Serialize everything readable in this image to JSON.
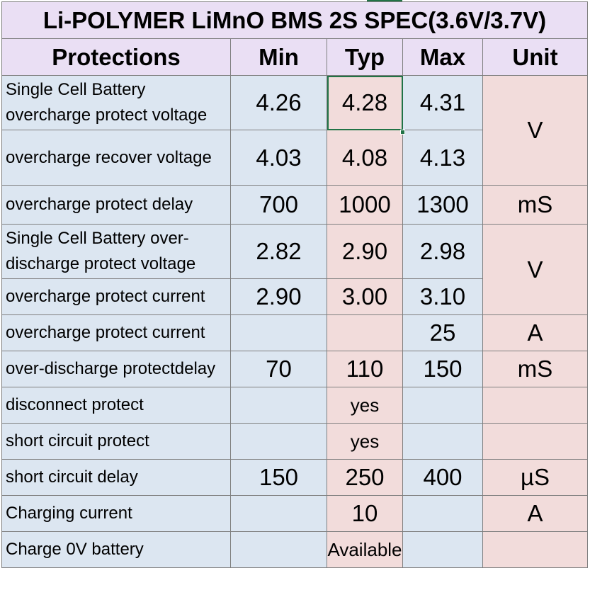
{
  "title": "Li-POLYMER LiMnO BMS 2S SPEC(3.6V/3.7V)",
  "headers": {
    "protections": "Protections",
    "min": "Min",
    "typ": "Typ",
    "max": "Max",
    "unit": "Unit"
  },
  "rows": [
    {
      "label": " Single Cell Battery overcharge protect voltage",
      "min": "4.26",
      "typ": "4.28",
      "max": "4.31"
    },
    {
      "label": "overcharge  recover voltage",
      "min": "4.03",
      "typ": "4.08",
      "max": "4.13"
    },
    {
      "label": " overcharge protect delay",
      "min": "700",
      "typ": "1000",
      "max": "1300",
      "unit": "mS"
    },
    {
      "label": " Single Cell Battery over-discharge protect voltage",
      "min": "2.82",
      "typ": "2.90",
      "max": "2.98"
    },
    {
      "label": " overcharge protect current",
      "min": "2.90",
      "typ": "3.00",
      "max": "3.10"
    },
    {
      "label": " overcharge protect current",
      "min": "",
      "typ": "",
      "max": "25",
      "unit": "A"
    },
    {
      "label": " over-discharge protectdelay",
      "min": "70",
      "typ": "110",
      "max": "150",
      "unit": "mS"
    },
    {
      "label": "disconnect protect",
      "min": "",
      "typ": "yes",
      "max": "",
      "unit": ""
    },
    {
      "label": "short circuit protect",
      "min": "",
      "typ": "yes",
      "max": "",
      "unit": ""
    },
    {
      "label": "short circuit delay",
      "min": "150",
      "typ": "250",
      "max": "400",
      "unit": "µS"
    },
    {
      "label": "Charging current",
      "min": "",
      "typ": "10",
      "max": "",
      "unit": "A"
    },
    {
      "label": "Charge 0V battery",
      "min": "",
      "typ": "Available",
      "max": "",
      "unit": ""
    }
  ],
  "merged_units": {
    "voltage_group_1": "V",
    "voltage_group_2": "V"
  },
  "colors": {
    "header_bg": "#eadff4",
    "blue_cell": "#dce6f1",
    "pink_cell": "#f2dcdb",
    "selection": "#217346"
  }
}
